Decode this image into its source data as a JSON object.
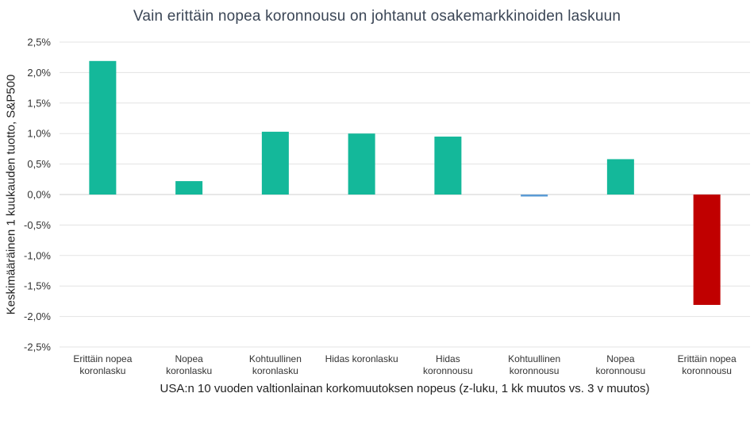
{
  "chart_data": {
    "type": "bar",
    "title": "Vain erittäin nopea koronnousu on johtanut osakemarkkinoiden laskuun",
    "xlabel": "USA:n 10 vuoden valtionlainan korkomuutoksen nopeus (z-luku, 1 kk muutos vs. 3 v muutos)",
    "ylabel": "Keskimääräinen 1 kuukauden tuotto, S&P500",
    "categories": [
      [
        "Erittäin nopea",
        "koronlasku"
      ],
      [
        "Nopea",
        "koronlasku"
      ],
      [
        "Kohtuullinen",
        "koronlasku"
      ],
      [
        "Hidas koronlasku"
      ],
      [
        "Hidas",
        "koronnousu"
      ],
      [
        "Kohtuullinen",
        "koronnousu"
      ],
      [
        "Nopea",
        "koronnousu"
      ],
      [
        "Erittäin nopea",
        "koronnousu"
      ]
    ],
    "values": [
      2.19,
      0.22,
      1.03,
      1.0,
      0.95,
      -0.03,
      0.58,
      -1.81
    ],
    "colors": [
      "#14b89a",
      "#14b89a",
      "#14b89a",
      "#14b89a",
      "#14b89a",
      "#5b9bd5",
      "#14b89a",
      "#c00000"
    ],
    "ylim": [
      -2.5,
      2.5
    ],
    "yticks": [
      2.5,
      2.0,
      1.5,
      1.0,
      0.5,
      0.0,
      -0.5,
      -1.0,
      -1.5,
      -2.0,
      -2.5
    ],
    "ytick_labels": [
      "2,5%",
      "2,0%",
      "1,5%",
      "1,0%",
      "0,5%",
      "0,0%",
      "-0,5%",
      "-1,0%",
      "-1,5%",
      "-2,0%",
      "-2,5%"
    ],
    "grid": true,
    "legend": false
  }
}
